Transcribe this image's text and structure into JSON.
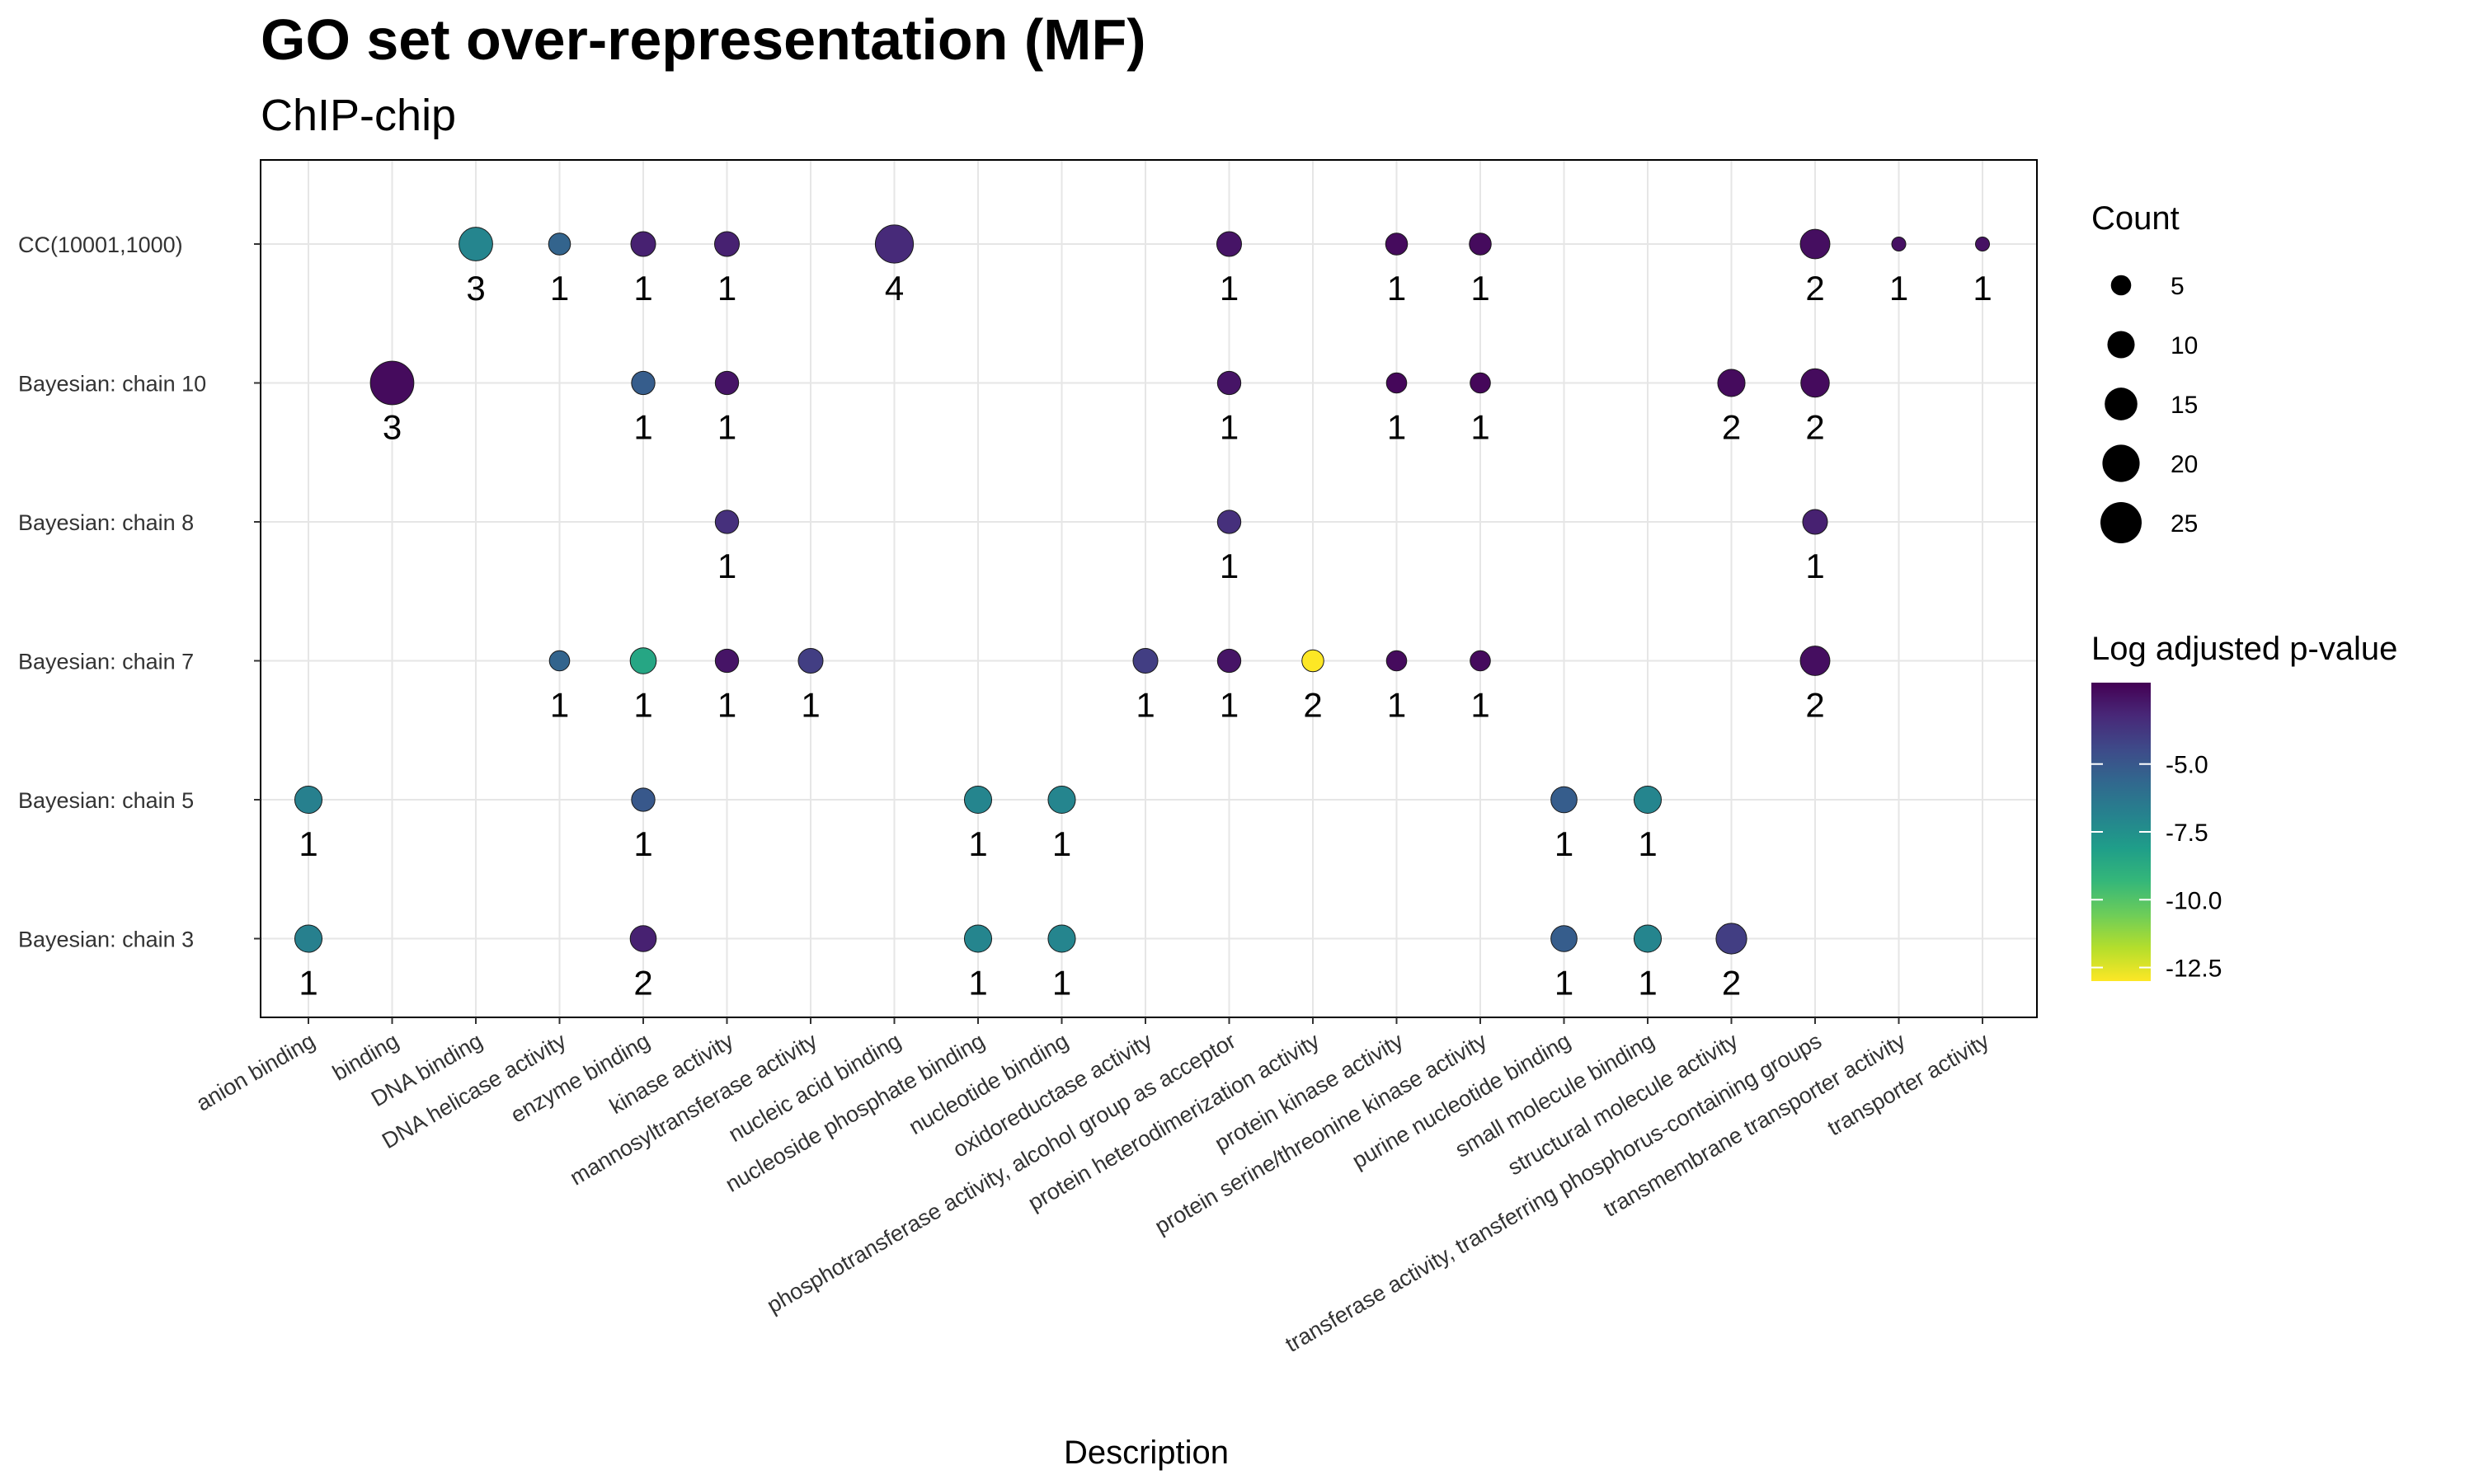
{
  "chart_data": {
    "type": "scatter",
    "title": "GO set over-representation (MF)",
    "subtitle": "ChIP-chip",
    "xlabel": "Description",
    "ylabel": "",
    "x_categories": [
      "anion binding",
      "binding",
      "DNA binding",
      "DNA helicase activity",
      "enzyme binding",
      "kinase activity",
      "mannosyltransferase activity",
      "nucleic acid binding",
      "nucleoside phosphate binding",
      "nucleotide binding",
      "oxidoreductase activity",
      "phosphotransferase activity, alcohol group as acceptor",
      "protein heterodimerization activity",
      "protein kinase activity",
      "protein serine/threonine kinase activity",
      "purine nucleotide binding",
      "small molecule binding",
      "structural molecule activity",
      "transferase activity, transferring phosphorus-containing groups",
      "transmembrane transporter activity",
      "transporter activity"
    ],
    "y_categories": [
      "Bayesian: chain 3",
      "Bayesian: chain 5",
      "Bayesian: chain 7",
      "Bayesian: chain 8",
      "Bayesian: chain 10",
      "CC(10001,1000)"
    ],
    "size_legend": {
      "title": "Count",
      "values": [
        5,
        10,
        15,
        20,
        25
      ]
    },
    "color_legend": {
      "title": "Log adjusted p-value",
      "ticks": [
        -5.0,
        -7.5,
        -10.0,
        -12.5
      ],
      "tick_labels": [
        "-5.0",
        "-7.5",
        "-10.0",
        "-12.5"
      ],
      "range": [
        -13.0,
        -2.0
      ],
      "palette": "viridis",
      "high_color": "#440154",
      "low_color": "#FDE725"
    },
    "grid": true,
    "legend_position": "right",
    "points": [
      {
        "x": "DNA binding",
        "y": "CC(10001,1000)",
        "count": 16,
        "logp": -7.0,
        "label": "3"
      },
      {
        "x": "DNA helicase activity",
        "y": "CC(10001,1000)",
        "count": 6,
        "logp": -5.5,
        "label": "1"
      },
      {
        "x": "enzyme binding",
        "y": "CC(10001,1000)",
        "count": 8,
        "logp": -3.0,
        "label": "1"
      },
      {
        "x": "kinase activity",
        "y": "CC(10001,1000)",
        "count": 8,
        "logp": -3.0,
        "label": "1"
      },
      {
        "x": "nucleic acid binding",
        "y": "CC(10001,1000)",
        "count": 21,
        "logp": -3.3,
        "label": "4"
      },
      {
        "x": "phosphotransferase activity, alcohol group as acceptor",
        "y": "CC(10001,1000)",
        "count": 8,
        "logp": -2.6,
        "label": "1"
      },
      {
        "x": "protein kinase activity",
        "y": "CC(10001,1000)",
        "count": 6,
        "logp": -2.3,
        "label": "1"
      },
      {
        "x": "protein serine/threonine kinase activity",
        "y": "CC(10001,1000)",
        "count": 6,
        "logp": -2.3,
        "label": "1"
      },
      {
        "x": "transferase activity, transferring phosphorus-containing groups",
        "y": "CC(10001,1000)",
        "count": 12,
        "logp": -2.4,
        "label": "2"
      },
      {
        "x": "transmembrane transporter activity",
        "y": "CC(10001,1000)",
        "count": 2,
        "logp": -2.5,
        "label": "1"
      },
      {
        "x": "transporter activity",
        "y": "CC(10001,1000)",
        "count": 2,
        "logp": -2.5,
        "label": "1"
      },
      {
        "x": "binding",
        "y": "Bayesian: chain 10",
        "count": 28,
        "logp": -2.3,
        "label": "3"
      },
      {
        "x": "enzyme binding",
        "y": "Bayesian: chain 10",
        "count": 7,
        "logp": -5.2,
        "label": "1"
      },
      {
        "x": "kinase activity",
        "y": "Bayesian: chain 10",
        "count": 7,
        "logp": -2.6,
        "label": "1"
      },
      {
        "x": "phosphotransferase activity, alcohol group as acceptor",
        "y": "Bayesian: chain 10",
        "count": 7,
        "logp": -2.6,
        "label": "1"
      },
      {
        "x": "protein kinase activity",
        "y": "Bayesian: chain 10",
        "count": 5,
        "logp": -2.2,
        "label": "1"
      },
      {
        "x": "protein serine/threonine kinase activity",
        "y": "Bayesian: chain 10",
        "count": 5,
        "logp": -2.2,
        "label": "1"
      },
      {
        "x": "structural molecule activity",
        "y": "Bayesian: chain 10",
        "count": 10,
        "logp": -2.3,
        "label": "2"
      },
      {
        "x": "transferase activity, transferring phosphorus-containing groups",
        "y": "Bayesian: chain 10",
        "count": 11,
        "logp": -2.3,
        "label": "2"
      },
      {
        "x": "kinase activity",
        "y": "Bayesian: chain 8",
        "count": 7,
        "logp": -3.5,
        "label": "1"
      },
      {
        "x": "phosphotransferase activity, alcohol group as acceptor",
        "y": "Bayesian: chain 8",
        "count": 7,
        "logp": -3.5,
        "label": "1"
      },
      {
        "x": "transferase activity, transferring phosphorus-containing groups",
        "y": "Bayesian: chain 8",
        "count": 8,
        "logp": -3.0,
        "label": "1"
      },
      {
        "x": "DNA helicase activity",
        "y": "Bayesian: chain 7",
        "count": 5,
        "logp": -5.5,
        "label": "1"
      },
      {
        "x": "enzyme binding",
        "y": "Bayesian: chain 7",
        "count": 9,
        "logp": -8.5,
        "label": "1"
      },
      {
        "x": "kinase activity",
        "y": "Bayesian: chain 7",
        "count": 7,
        "logp": -2.6,
        "label": "1"
      },
      {
        "x": "mannosyltransferase activity",
        "y": "Bayesian: chain 7",
        "count": 8,
        "logp": -4.0,
        "label": "1"
      },
      {
        "x": "oxidoreductase activity",
        "y": "Bayesian: chain 7",
        "count": 8,
        "logp": -4.0,
        "label": "1"
      },
      {
        "x": "phosphotransferase activity, alcohol group as acceptor",
        "y": "Bayesian: chain 7",
        "count": 7,
        "logp": -2.6,
        "label": "1"
      },
      {
        "x": "protein heterodimerization activity",
        "y": "Bayesian: chain 7",
        "count": 6,
        "logp": -13.0,
        "label": "2"
      },
      {
        "x": "protein kinase activity",
        "y": "Bayesian: chain 7",
        "count": 5,
        "logp": -2.3,
        "label": "1"
      },
      {
        "x": "protein serine/threonine kinase activity",
        "y": "Bayesian: chain 7",
        "count": 5,
        "logp": -2.3,
        "label": "1"
      },
      {
        "x": "transferase activity, transferring phosphorus-containing groups",
        "y": "Bayesian: chain 7",
        "count": 12,
        "logp": -2.4,
        "label": "2"
      },
      {
        "x": "anion binding",
        "y": "Bayesian: chain 5",
        "count": 10,
        "logp": -6.8,
        "label": "1"
      },
      {
        "x": "enzyme binding",
        "y": "Bayesian: chain 5",
        "count": 7,
        "logp": -5.0,
        "label": "1"
      },
      {
        "x": "nucleoside phosphate binding",
        "y": "Bayesian: chain 5",
        "count": 10,
        "logp": -7.0,
        "label": "1"
      },
      {
        "x": "nucleotide binding",
        "y": "Bayesian: chain 5",
        "count": 10,
        "logp": -7.0,
        "label": "1"
      },
      {
        "x": "purine nucleotide binding",
        "y": "Bayesian: chain 5",
        "count": 9,
        "logp": -5.2,
        "label": "1"
      },
      {
        "x": "small molecule binding",
        "y": "Bayesian: chain 5",
        "count": 10,
        "logp": -7.0,
        "label": "1"
      },
      {
        "x": "anion binding",
        "y": "Bayesian: chain 3",
        "count": 10,
        "logp": -6.8,
        "label": "1"
      },
      {
        "x": "enzyme binding",
        "y": "Bayesian: chain 3",
        "count": 9,
        "logp": -3.0,
        "label": "2"
      },
      {
        "x": "nucleoside phosphate binding",
        "y": "Bayesian: chain 3",
        "count": 10,
        "logp": -7.0,
        "label": "1"
      },
      {
        "x": "nucleotide binding",
        "y": "Bayesian: chain 3",
        "count": 10,
        "logp": -7.0,
        "label": "1"
      },
      {
        "x": "purine nucleotide binding",
        "y": "Bayesian: chain 3",
        "count": 9,
        "logp": -5.2,
        "label": "1"
      },
      {
        "x": "small molecule binding",
        "y": "Bayesian: chain 3",
        "count": 10,
        "logp": -7.0,
        "label": "1"
      },
      {
        "x": "structural molecule activity",
        "y": "Bayesian: chain 3",
        "count": 13,
        "logp": -4.0,
        "label": "2"
      }
    ]
  }
}
